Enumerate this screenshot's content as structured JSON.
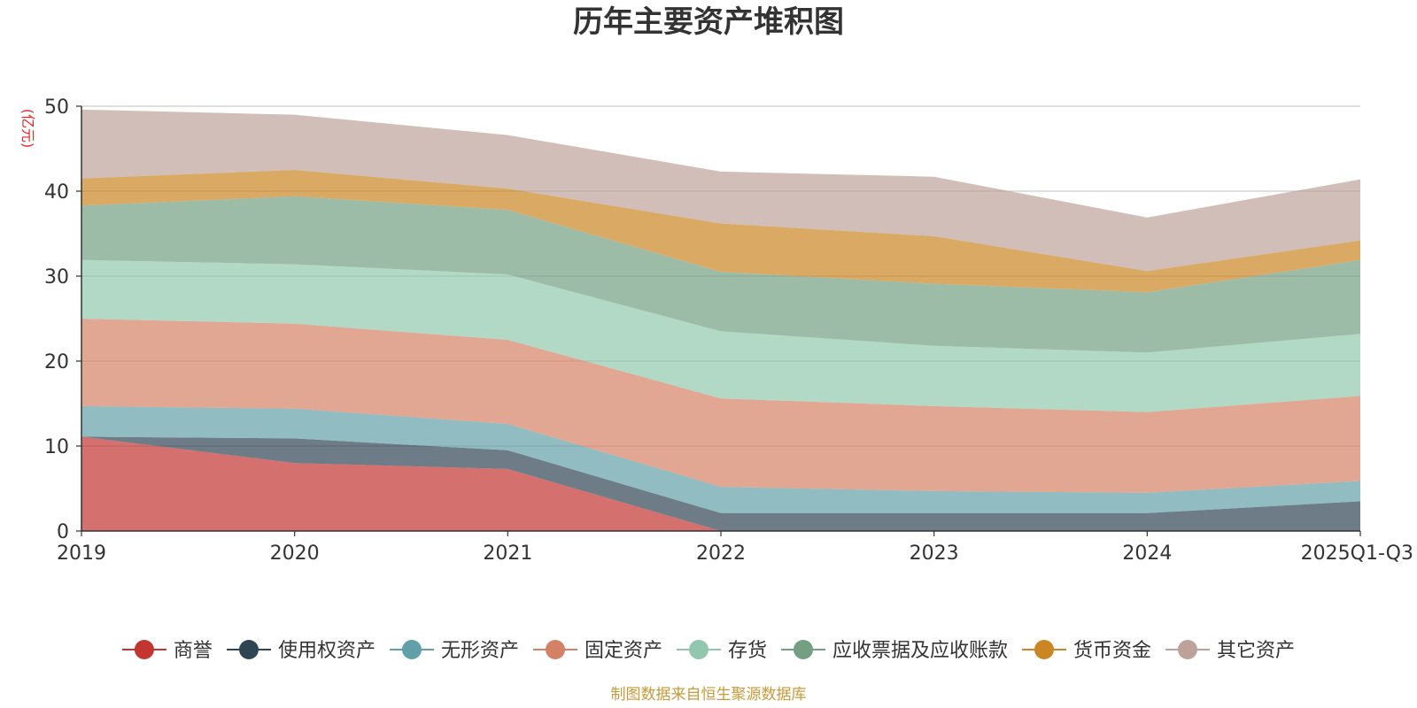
{
  "chart_data": {
    "type": "area",
    "stacked": true,
    "title": "历年主要资产堆积图",
    "ylabel": "(亿元)",
    "xlabel": "",
    "ylim": [
      0,
      50
    ],
    "yticks": [
      0,
      10,
      20,
      30,
      40,
      50
    ],
    "grid": true,
    "legend_position": "bottom",
    "categories": [
      "2019",
      "2020",
      "2021",
      "2022",
      "2023",
      "2024",
      "2025Q1-Q3"
    ],
    "series": [
      {
        "name": "商誉",
        "color": "#c23531",
        "values": [
          11.1,
          8.0,
          7.3,
          0.0,
          0.0,
          0.0,
          0.0
        ]
      },
      {
        "name": "使用权资产",
        "color": "#2f4554",
        "values": [
          0.0,
          2.9,
          2.2,
          2.1,
          2.1,
          2.1,
          3.5
        ]
      },
      {
        "name": "无形资产",
        "color": "#61a0a8",
        "values": [
          3.6,
          3.5,
          3.1,
          3.1,
          2.6,
          2.4,
          2.4
        ]
      },
      {
        "name": "固定资产",
        "color": "#d48265",
        "values": [
          10.3,
          10.0,
          9.9,
          10.4,
          10.0,
          9.5,
          10.0
        ]
      },
      {
        "name": "存货",
        "color": "#91c7ae",
        "values": [
          6.9,
          7.0,
          7.7,
          7.9,
          7.1,
          7.0,
          7.3
        ]
      },
      {
        "name": "应收票据及应收账款",
        "color": "#749f83",
        "values": [
          6.4,
          8.0,
          7.6,
          7.0,
          7.3,
          7.1,
          8.7
        ]
      },
      {
        "name": "货币资金",
        "color": "#ca8622",
        "values": [
          3.2,
          3.1,
          2.5,
          5.7,
          5.6,
          2.5,
          2.3
        ]
      },
      {
        "name": "其它资产",
        "color": "#bda29a",
        "values": [
          8.1,
          6.5,
          6.3,
          6.1,
          7.0,
          6.3,
          7.2
        ]
      }
    ],
    "source_note": "制图数据来自恒生聚源数据库"
  }
}
